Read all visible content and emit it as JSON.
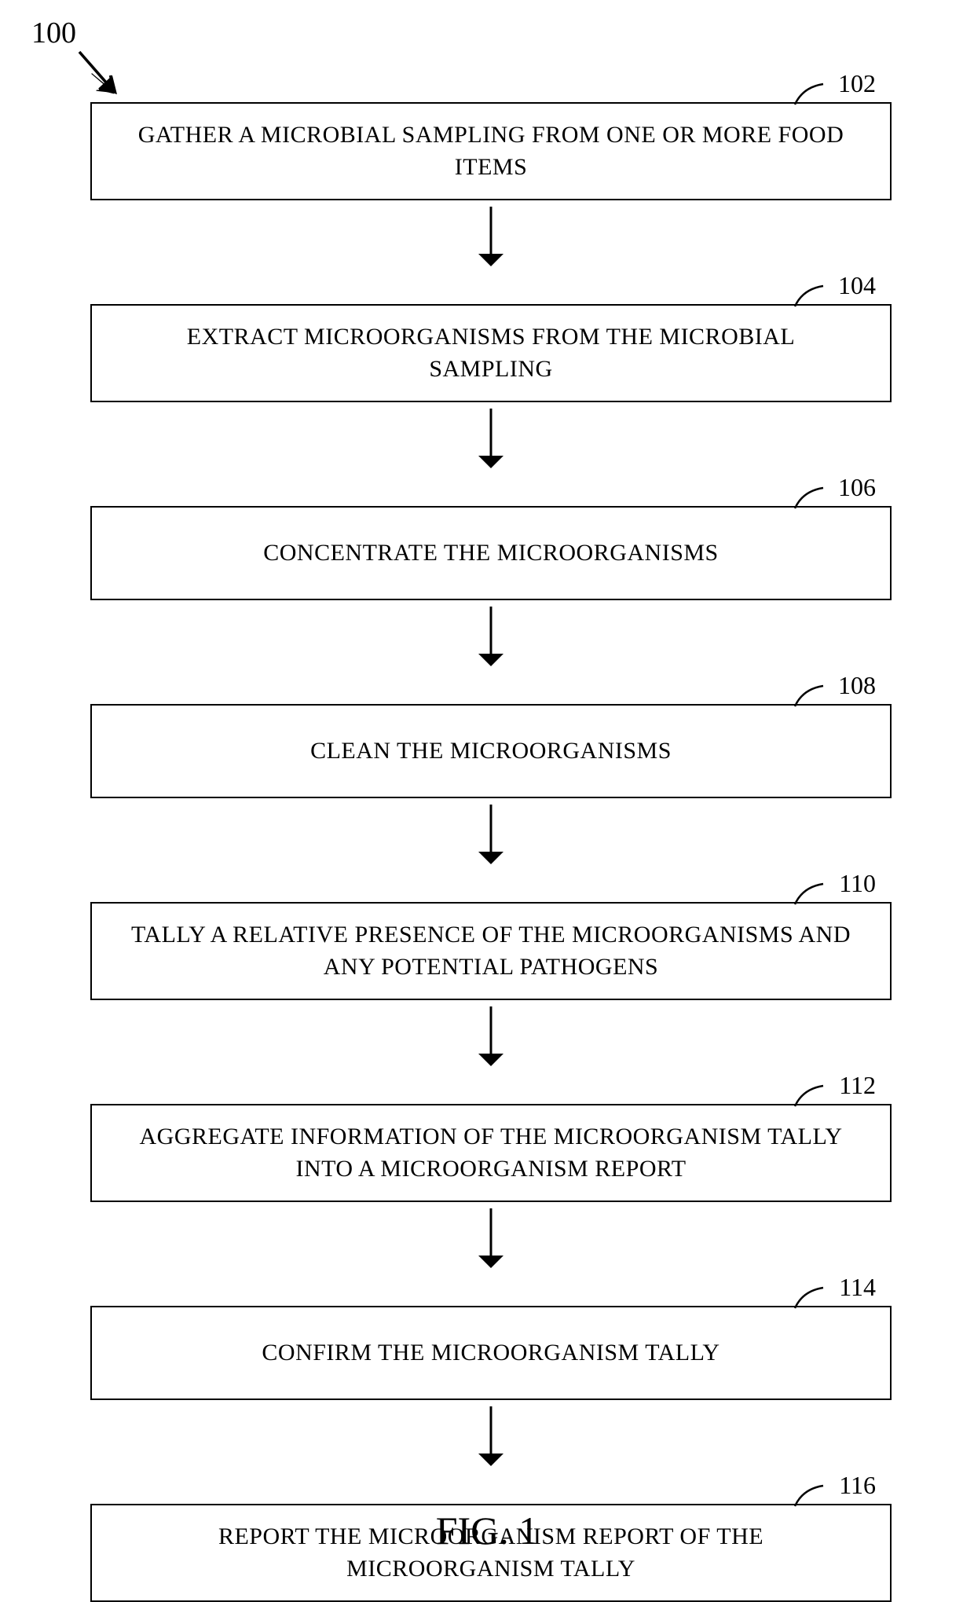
{
  "diagram": {
    "type": "flowchart",
    "main_label": "100",
    "caption": "FIG. 1",
    "box_border_color": "#000000",
    "box_border_width": 2.5,
    "background_color": "#ffffff",
    "text_color": "#000000",
    "font_family": "Times New Roman",
    "step_fontsize": 30,
    "label_fontsize": 32,
    "main_label_fontsize": 38,
    "caption_fontsize": 50,
    "arrow_length": 60,
    "arrow_stroke_width": 3,
    "arrow_head_size": 16,
    "steps": [
      {
        "label": "102",
        "text": "GATHER A MICROBIAL SAMPLING FROM ONE OR MORE FOOD ITEMS"
      },
      {
        "label": "104",
        "text": "EXTRACT MICROORGANISMS FROM THE MICROBIAL SAMPLING"
      },
      {
        "label": "106",
        "text": "CONCENTRATE THE MICROORGANISMS"
      },
      {
        "label": "108",
        "text": "CLEAN THE MICROORGANISMS"
      },
      {
        "label": "110",
        "text": "TALLY A RELATIVE PRESENCE OF THE MICROORGANISMS AND ANY POTENTIAL PATHOGENS"
      },
      {
        "label": "112",
        "text": "AGGREGATE INFORMATION OF THE MICROORGANISM TALLY INTO A MICROORGANISM REPORT"
      },
      {
        "label": "114",
        "text": "CONFIRM THE MICROORGANISM TALLY"
      },
      {
        "label": "116",
        "text": "REPORT THE MICROORGANISM REPORT OF THE MICROORGANISM TALLY"
      }
    ]
  }
}
